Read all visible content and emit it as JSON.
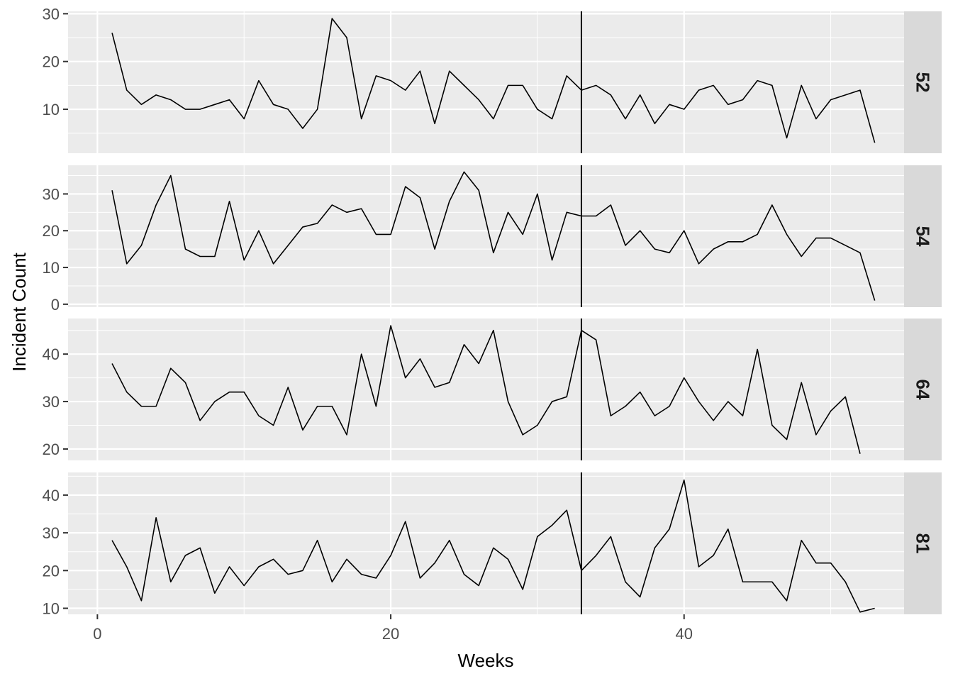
{
  "chart_data": {
    "type": "line",
    "facet_layout": "rows",
    "xlabel": "Weeks",
    "ylabel": "Incident Count",
    "xlim": [
      -2,
      55
    ],
    "x_ticks": [
      0,
      20,
      40
    ],
    "vline_x": 33,
    "grid": true,
    "colors": {
      "panel_bg": "#ebebeb",
      "grid": "#ffffff",
      "strip_bg": "#d9d9d9",
      "line": "#000000",
      "tick_text": "#4d4d4d"
    },
    "panels": [
      {
        "label": "52",
        "ylim": [
          0.8,
          30.5
        ],
        "y_ticks": [
          10,
          20,
          30
        ],
        "values": [
          26,
          14,
          11,
          13,
          12,
          10,
          10,
          11,
          12,
          8,
          16,
          11,
          10,
          6,
          10,
          29,
          25,
          8,
          17,
          16,
          14,
          18,
          7,
          18,
          15,
          12,
          8,
          15,
          15,
          10,
          8,
          17,
          14,
          15,
          13,
          8,
          13,
          7,
          11,
          10,
          14,
          15,
          11,
          12,
          16,
          15,
          4,
          15,
          8,
          12,
          13,
          14,
          3
        ]
      },
      {
        "label": "54",
        "ylim": [
          -0.8,
          37.8
        ],
        "y_ticks": [
          0,
          10,
          20,
          30
        ],
        "values": [
          31,
          11,
          16,
          27,
          35,
          15,
          13,
          13,
          28,
          12,
          20,
          11,
          16,
          21,
          22,
          27,
          25,
          26,
          19,
          19,
          32,
          29,
          15,
          28,
          36,
          31,
          14,
          25,
          19,
          30,
          12,
          25,
          24,
          24,
          27,
          16,
          20,
          15,
          14,
          20,
          11,
          15,
          17,
          17,
          19,
          27,
          19,
          13,
          18,
          18,
          16,
          14,
          1
        ]
      },
      {
        "label": "64",
        "ylim": [
          17.6,
          47.5
        ],
        "y_ticks": [
          20,
          30,
          40
        ],
        "values": [
          38,
          32,
          29,
          29,
          37,
          34,
          26,
          30,
          32,
          32,
          27,
          25,
          33,
          24,
          29,
          29,
          23,
          40,
          29,
          46,
          35,
          39,
          33,
          34,
          42,
          38,
          45,
          30,
          23,
          25,
          30,
          31,
          45,
          43,
          27,
          29,
          32,
          27,
          29,
          35,
          30,
          26,
          30,
          27,
          41,
          25,
          22,
          34,
          23,
          28,
          31,
          19
        ]
      },
      {
        "label": "81",
        "ylim": [
          8.4,
          46.0
        ],
        "y_ticks": [
          10,
          20,
          30,
          40
        ],
        "values": [
          28,
          21,
          12,
          34,
          17,
          24,
          26,
          14,
          21,
          16,
          21,
          23,
          19,
          20,
          28,
          17,
          23,
          19,
          18,
          24,
          33,
          18,
          22,
          28,
          19,
          16,
          26,
          23,
          15,
          29,
          32,
          36,
          20,
          24,
          29,
          17,
          13,
          26,
          31,
          44,
          21,
          24,
          31,
          17,
          17,
          17,
          12,
          28,
          22,
          22,
          17,
          9,
          10
        ]
      }
    ]
  }
}
